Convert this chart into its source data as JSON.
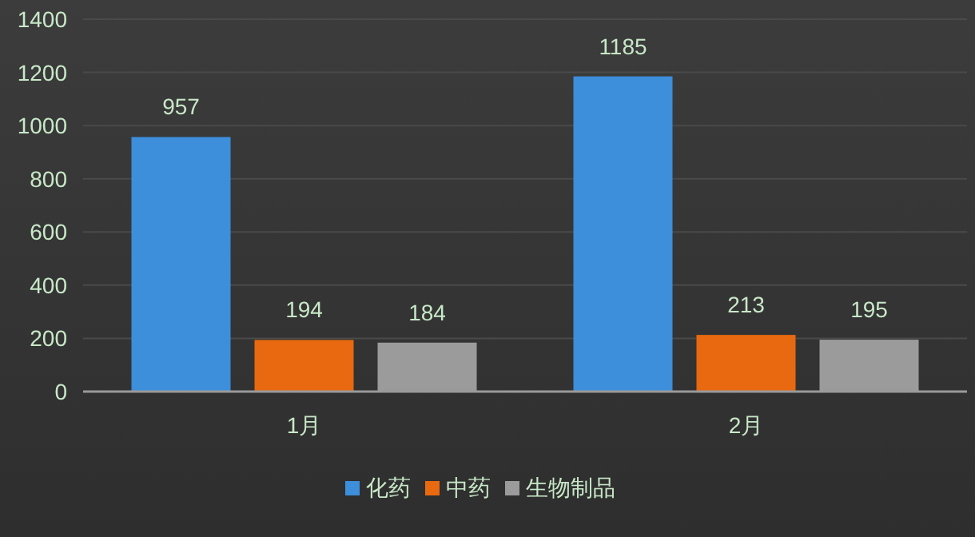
{
  "chart_data": {
    "type": "bar",
    "categories": [
      "1月",
      "2月"
    ],
    "series": [
      {
        "name": "化药",
        "color": "#3d8edb",
        "values": [
          957,
          1185
        ]
      },
      {
        "name": "中药",
        "color": "#e8690f",
        "values": [
          194,
          213
        ]
      },
      {
        "name": "生物制品",
        "color": "#9b9b9b",
        "values": [
          184,
          195
        ]
      }
    ],
    "ylim": [
      0,
      1400
    ],
    "yticks": [
      0,
      200,
      400,
      600,
      800,
      1000,
      1200,
      1400
    ],
    "grid": "y",
    "legend": "bottom",
    "data_labels": true
  }
}
